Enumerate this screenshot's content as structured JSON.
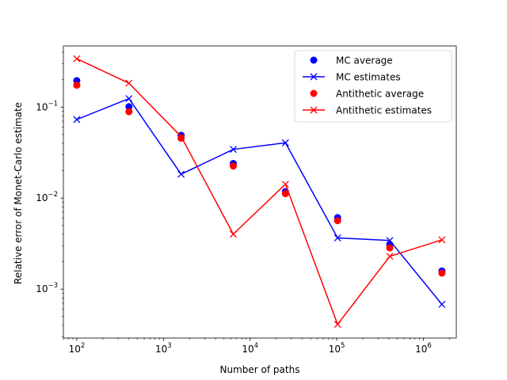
{
  "chart_data": {
    "type": "line",
    "title": "",
    "xlabel": "Number of paths",
    "ylabel": "Relative error of Monet-Carlo estimate",
    "xscale": "log",
    "yscale": "log",
    "xlim": [
      70,
      2400000
    ],
    "ylim": [
      0.00029,
      0.47
    ],
    "grid": false,
    "legend_position": "top-right",
    "x_ticks": [
      {
        "value": 100,
        "base": "10",
        "exp": "2"
      },
      {
        "value": 1000,
        "base": "10",
        "exp": "3"
      },
      {
        "value": 10000,
        "base": "10",
        "exp": "4"
      },
      {
        "value": 100000,
        "base": "10",
        "exp": "5"
      },
      {
        "value": 1000000,
        "base": "10",
        "exp": "6"
      }
    ],
    "y_ticks": [
      {
        "value": 0.001,
        "base": "10",
        "exp": "−3"
      },
      {
        "value": 0.01,
        "base": "10",
        "exp": "−2"
      },
      {
        "value": 0.1,
        "base": "10",
        "exp": "−1"
      }
    ],
    "x": [
      100,
      400,
      1600,
      6400,
      25600,
      102400,
      409600,
      1638400
    ],
    "series": [
      {
        "name": "MC average",
        "style": "dots",
        "color": "#0000ff",
        "values": [
          0.195,
          0.101,
          0.049,
          0.024,
          0.0118,
          0.0061,
          0.0031,
          0.00158
        ]
      },
      {
        "name": "MC estimates",
        "style": "line-x",
        "color": "#0000ff",
        "values": [
          0.073,
          0.124,
          0.0183,
          0.0343,
          0.0405,
          0.00365,
          0.00342,
          0.00068
        ]
      },
      {
        "name": "Antithetic average",
        "style": "dots",
        "color": "#ff0000",
        "values": [
          0.174,
          0.089,
          0.0455,
          0.0225,
          0.0112,
          0.00565,
          0.00284,
          0.0015
        ]
      },
      {
        "name": "Antithetic estimates",
        "style": "line-x",
        "color": "#ff0000",
        "values": [
          0.34,
          0.183,
          0.0475,
          0.00402,
          0.0142,
          0.00041,
          0.00229,
          0.00348
        ]
      }
    ]
  }
}
